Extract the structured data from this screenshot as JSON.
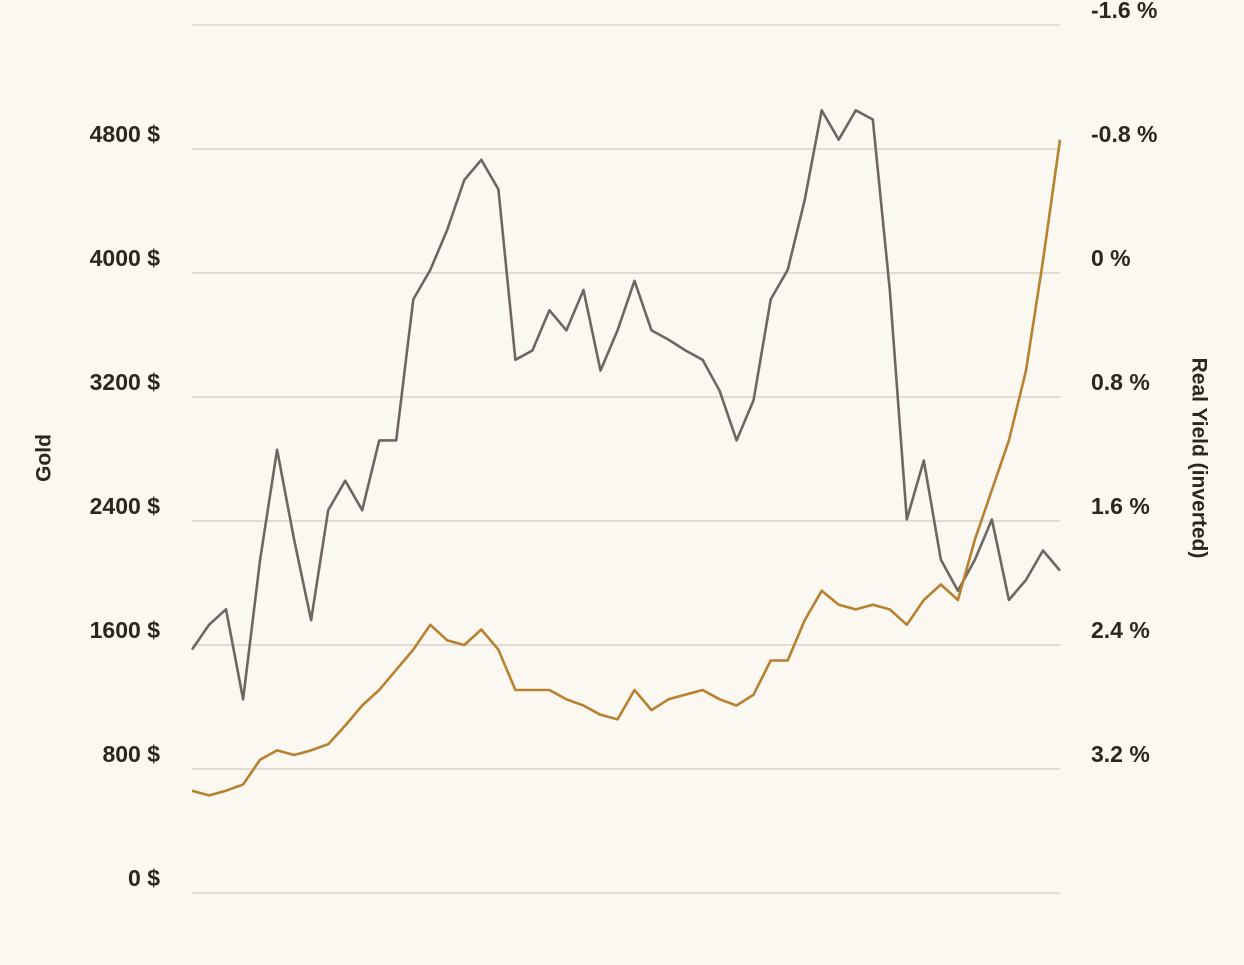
{
  "chart_data": {
    "type": "line",
    "y_label": "Gold",
    "y2_label": "Real Yield (inverted)",
    "ylim": [
      0,
      5600
    ],
    "yticks": [
      {
        "value": 0,
        "label": "0 $"
      },
      {
        "value": 800,
        "label": "800 $"
      },
      {
        "value": 1600,
        "label": "1600 $"
      },
      {
        "value": 2400,
        "label": "2400 $"
      },
      {
        "value": 3200,
        "label": "3200 $"
      },
      {
        "value": 4000,
        "label": "4000 $"
      },
      {
        "value": 4800,
        "label": "4800 $"
      }
    ],
    "y2lim": [
      4,
      -1.6
    ],
    "y2ticks": [
      {
        "value": -1.6,
        "label": "-1.6 %"
      },
      {
        "value": -0.8,
        "label": "-0.8 %"
      },
      {
        "value": 0,
        "label": "0 %"
      },
      {
        "value": 0.8,
        "label": "0.8 %"
      },
      {
        "value": 1.6,
        "label": "1.6 %"
      },
      {
        "value": 2.4,
        "label": "2.4 %"
      },
      {
        "value": 3.2,
        "label": "3.2 %"
      }
    ],
    "grid": true,
    "series": [
      {
        "color": "#6f675f",
        "axis": "y2",
        "values": [
          2.43,
          2.27,
          2.17,
          2.75,
          1.85,
          1.14,
          1.72,
          2.24,
          1.53,
          1.34,
          1.53,
          1.08,
          1.08,
          0.17,
          -0.02,
          -0.28,
          -0.6,
          -0.73,
          -0.54,
          0.56,
          0.5,
          0.24,
          0.37,
          0.11,
          0.63,
          0.37,
          0.05,
          0.37,
          0.43,
          0.5,
          0.56,
          0.76,
          1.08,
          0.82,
          0.17,
          -0.02,
          -0.47,
          -1.05,
          -0.86,
          -1.05,
          -0.99,
          0.11,
          1.59,
          1.21,
          1.85,
          2.05,
          1.85,
          1.59,
          2.11,
          1.98,
          1.79,
          1.92
        ]
      },
      {
        "color": "#b8802f",
        "axis": "y",
        "values": [
          660,
          630,
          660,
          700,
          860,
          920,
          890,
          920,
          960,
          1080,
          1210,
          1310,
          1440,
          1570,
          1730,
          1630,
          1600,
          1700,
          1570,
          1310,
          1310,
          1310,
          1250,
          1210,
          1150,
          1120,
          1310,
          1180,
          1250,
          1280,
          1310,
          1250,
          1210,
          1280,
          1500,
          1500,
          1760,
          1950,
          1860,
          1830,
          1860,
          1830,
          1730,
          1890,
          1990,
          1890,
          2280,
          2600,
          2920,
          3370,
          4080,
          4860
        ]
      }
    ]
  }
}
